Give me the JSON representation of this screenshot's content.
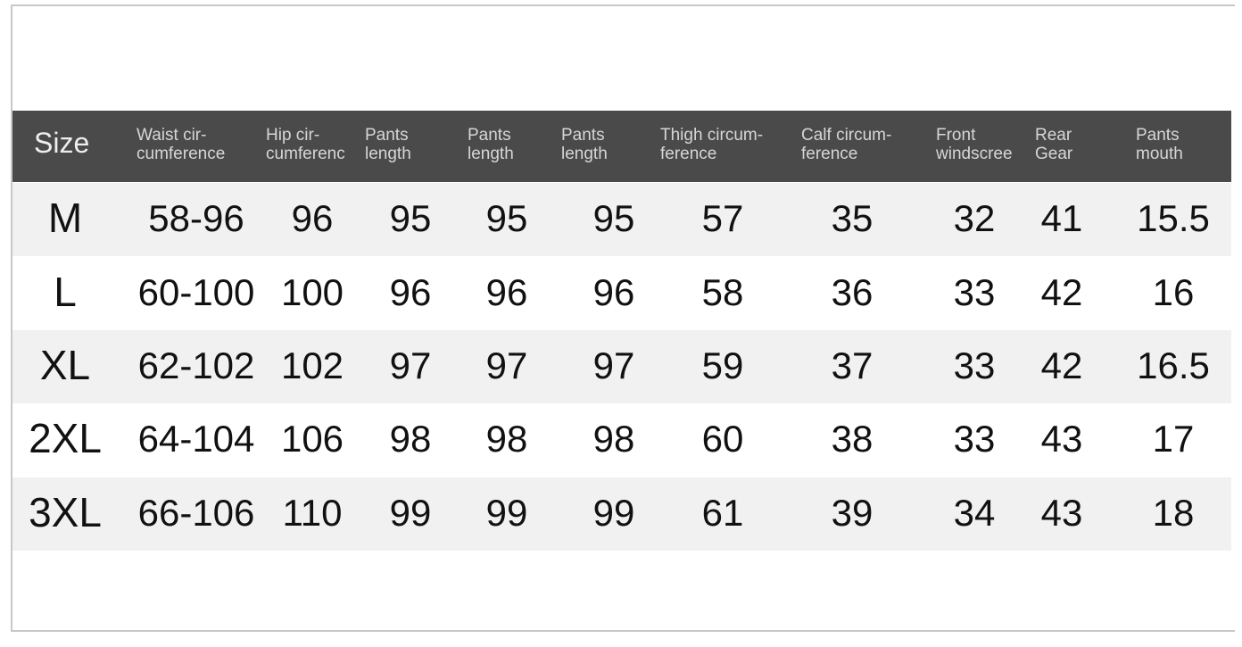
{
  "headers": [
    "Size",
    "Waist cir-\ncumference",
    "Hip cir-\ncumferenc",
    "Pants\nlength",
    "Pants\nlength",
    "Pants\nlength",
    "Thigh circum-\nference",
    "Calf circum-\nference",
    "Front\nwindscree",
    "Rear\nGear",
    "Pants\nmouth"
  ],
  "rows": [
    [
      "M",
      "58-96",
      "96",
      "95",
      "95",
      "95",
      "57",
      "35",
      "32",
      "41",
      "15.5"
    ],
    [
      "L",
      "60-100",
      "100",
      "96",
      "96",
      "96",
      "58",
      "36",
      "33",
      "42",
      "16"
    ],
    [
      "XL",
      "62-102",
      "102",
      "97",
      "97",
      "97",
      "59",
      "37",
      "33",
      "42",
      "16.5"
    ],
    [
      "2XL",
      "64-104",
      "106",
      "98",
      "98",
      "98",
      "60",
      "38",
      "33",
      "43",
      "17"
    ],
    [
      "3XL",
      "66-106",
      "110",
      "99",
      "99",
      "99",
      "61",
      "39",
      "34",
      "43",
      "18"
    ]
  ],
  "colors": {
    "header_bg": "#4a4a4a",
    "header_text": "#d6d6d6",
    "row_alt": "#f1f1f1"
  }
}
